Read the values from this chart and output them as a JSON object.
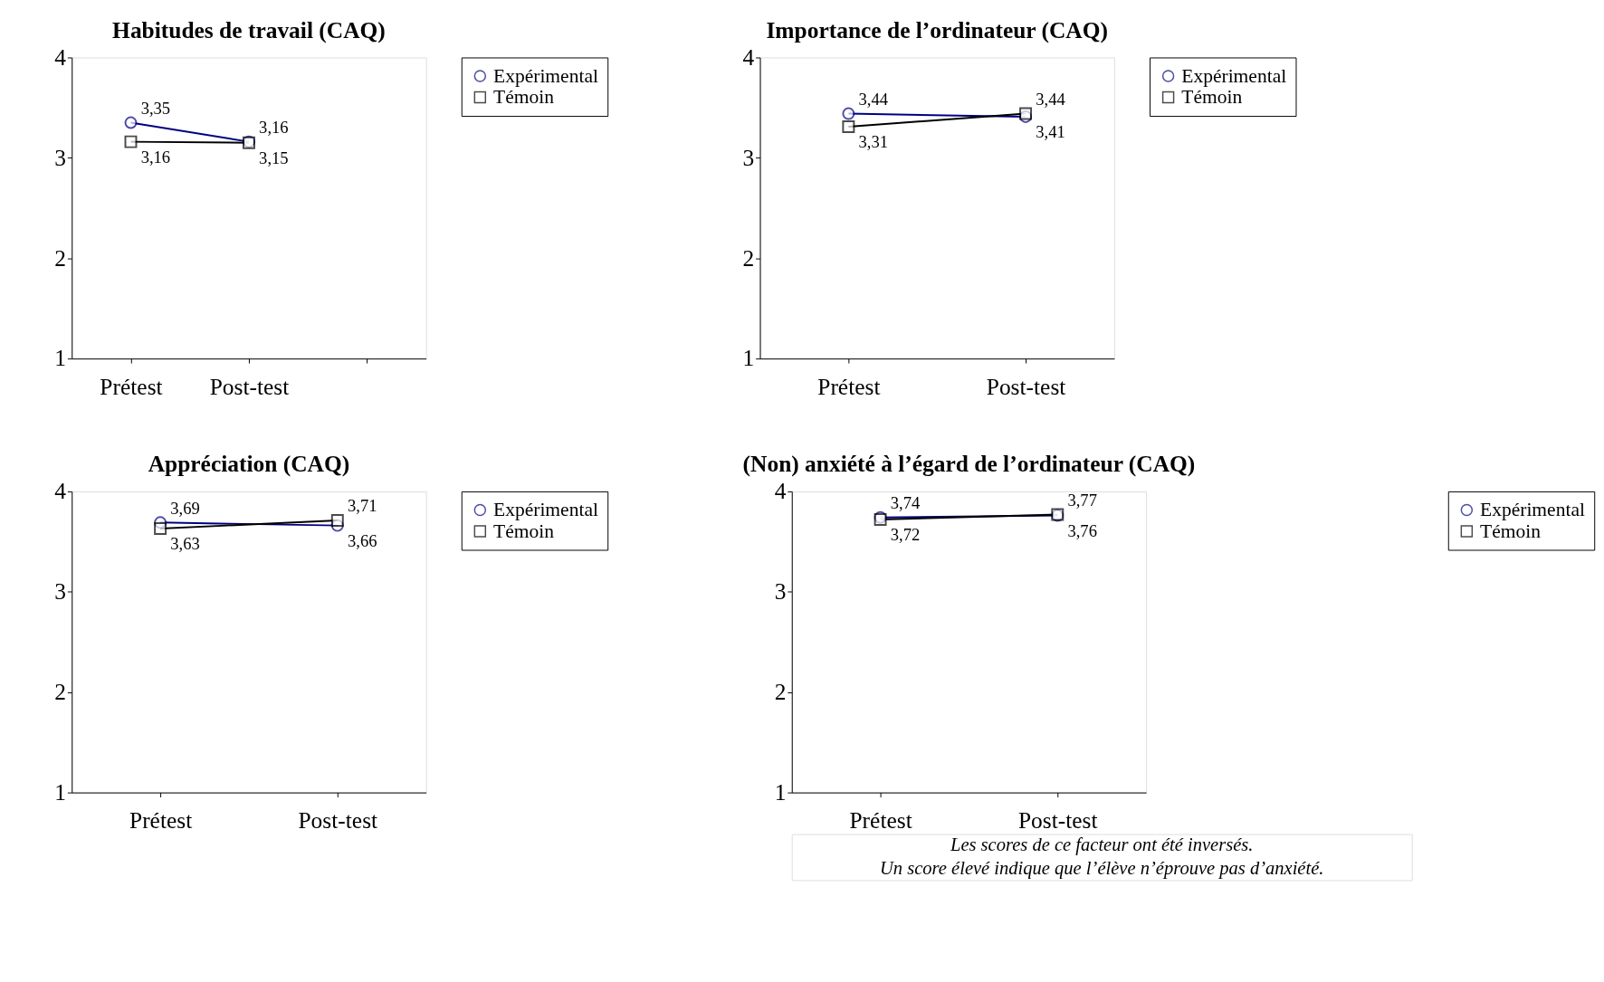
{
  "chart_data": [
    {
      "type": "line",
      "title": "Habitudes de travail (CAQ)",
      "categories": [
        "Prétest",
        "Post-test",
        null
      ],
      "ylim": [
        1,
        4
      ],
      "yticks": [
        1,
        2,
        3,
        4
      ],
      "legend": "right",
      "grid": false,
      "series": [
        {
          "name": "Expérimental",
          "color": "#000080",
          "marker": "circle",
          "values": [
            3.35,
            3.16,
            null
          ],
          "value_labels": [
            "3,35",
            "3,16",
            null
          ]
        },
        {
          "name": "Témoin",
          "color": "#000000",
          "marker": "square",
          "values": [
            3.16,
            3.15,
            null
          ],
          "value_labels": [
            "3,16",
            "3,15",
            null
          ]
        }
      ]
    },
    {
      "type": "line",
      "title": "Importance de l’ordinateur (CAQ)",
      "categories": [
        "Prétest",
        "Post-test"
      ],
      "ylim": [
        1,
        4
      ],
      "yticks": [
        1,
        2,
        3,
        4
      ],
      "legend": "right",
      "grid": false,
      "series": [
        {
          "name": "Expérimental",
          "color": "#000080",
          "marker": "circle",
          "values": [
            3.44,
            3.41
          ],
          "value_labels": [
            "3,44",
            "3,41"
          ]
        },
        {
          "name": "Témoin",
          "color": "#000000",
          "marker": "square",
          "values": [
            3.31,
            3.44
          ],
          "value_labels": [
            "3,31",
            "3,44"
          ]
        }
      ]
    },
    {
      "type": "line",
      "title": "Appréciation (CAQ)",
      "categories": [
        "Prétest",
        "Post-test"
      ],
      "ylim": [
        1,
        4
      ],
      "yticks": [
        1,
        2,
        3,
        4
      ],
      "legend": "right",
      "grid": false,
      "series": [
        {
          "name": "Expérimental",
          "color": "#000080",
          "marker": "circle",
          "values": [
            3.69,
            3.66
          ],
          "value_labels": [
            "3,69",
            "3,66"
          ]
        },
        {
          "name": "Témoin",
          "color": "#000000",
          "marker": "square",
          "values": [
            3.63,
            3.71
          ],
          "value_labels": [
            "3,63",
            "3,71"
          ]
        }
      ]
    },
    {
      "type": "line",
      "title": "(Non) anxiété à l’égard de l’ordinateur (CAQ)",
      "categories": [
        "Prétest",
        "Post-test"
      ],
      "ylim": [
        1,
        4
      ],
      "yticks": [
        1,
        2,
        3,
        4
      ],
      "legend": "right",
      "grid": false,
      "annotations": [
        "Les scores de ce facteur ont été inversés.",
        "Un score élevé indique que l’élève n’éprouve pas d’anxiété."
      ],
      "series": [
        {
          "name": "Expérimental",
          "color": "#000080",
          "marker": "circle",
          "values": [
            3.74,
            3.76
          ],
          "value_labels": [
            "3,74",
            "3,76"
          ]
        },
        {
          "name": "Témoin",
          "color": "#000000",
          "marker": "square",
          "values": [
            3.72,
            3.77
          ],
          "value_labels": [
            "3,72",
            "3,77"
          ]
        }
      ]
    }
  ]
}
